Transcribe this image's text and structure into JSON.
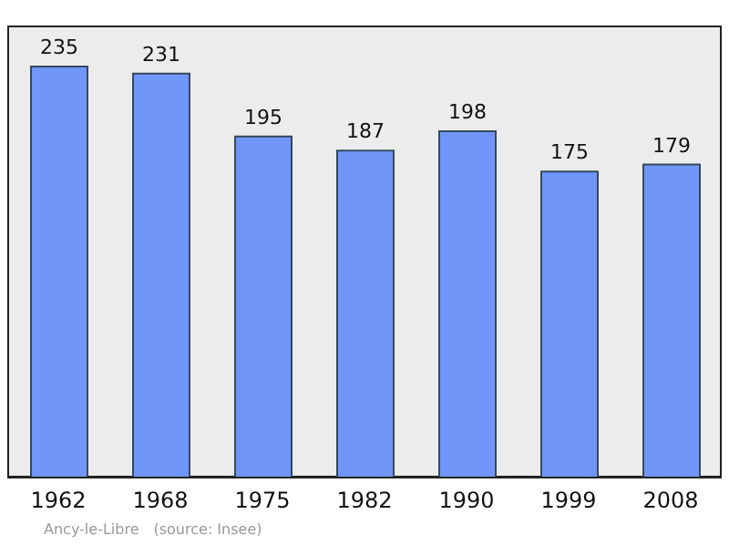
{
  "chart_data": {
    "type": "bar",
    "categories": [
      "1962",
      "1968",
      "1975",
      "1982",
      "1990",
      "1999",
      "2008"
    ],
    "values": [
      235,
      231,
      195,
      187,
      198,
      175,
      179
    ],
    "color": "#6f96f8",
    "data_labels": true,
    "annotations": [
      "Ancy-le-Libre",
      "(source: Insee)"
    ]
  }
}
